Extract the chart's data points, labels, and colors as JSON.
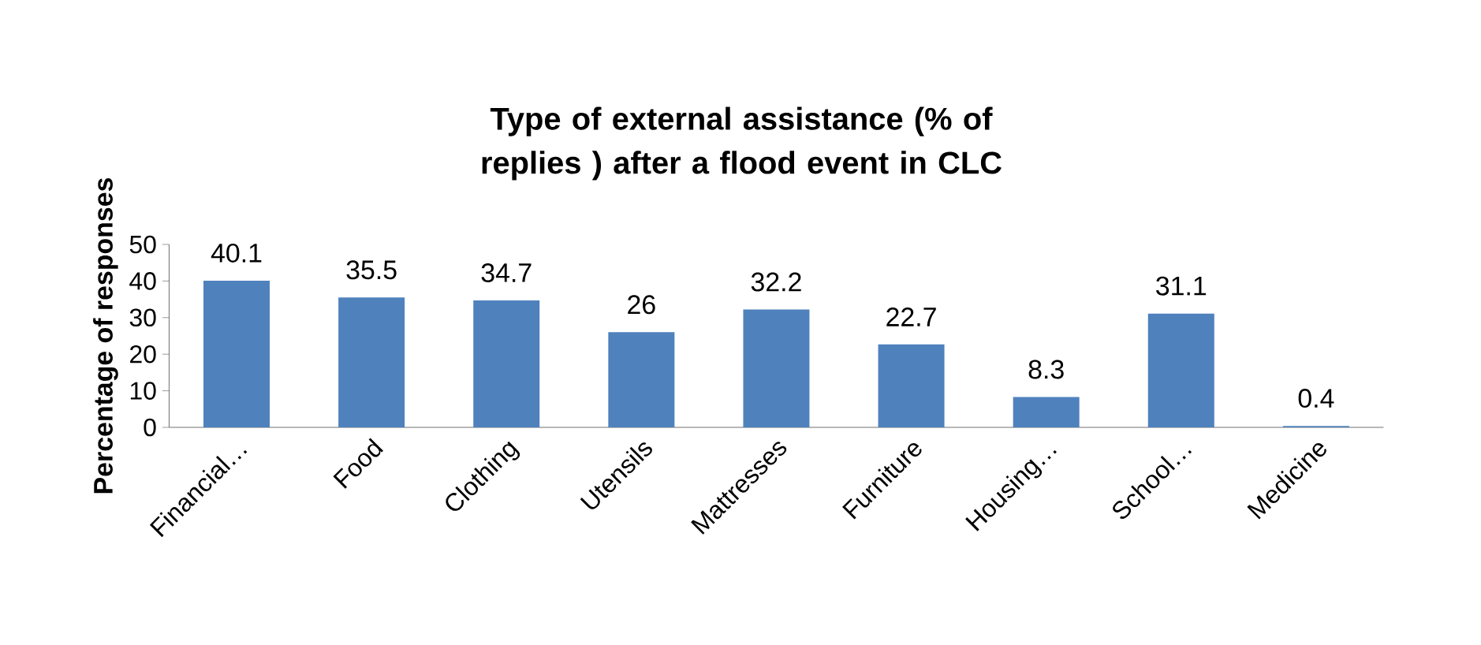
{
  "chart_data": {
    "type": "bar",
    "title": "Type of external assistance (% of replies ) after a flood event in CLC",
    "ylabel": "Percentage  of responses",
    "categories": [
      "Financial…",
      "Food",
      "Clothing",
      "Utensils",
      "Mattresses",
      "Furniture",
      "Housing…",
      "School…",
      "Medicine"
    ],
    "values": [
      40.1,
      35.5,
      34.7,
      26,
      32.2,
      22.7,
      8.3,
      31.1,
      0.4
    ],
    "color": "#4f81bd",
    "ylim": [
      0,
      50
    ],
    "yticks": [
      0,
      10,
      20,
      30,
      40,
      50
    ],
    "data_labels": true
  }
}
